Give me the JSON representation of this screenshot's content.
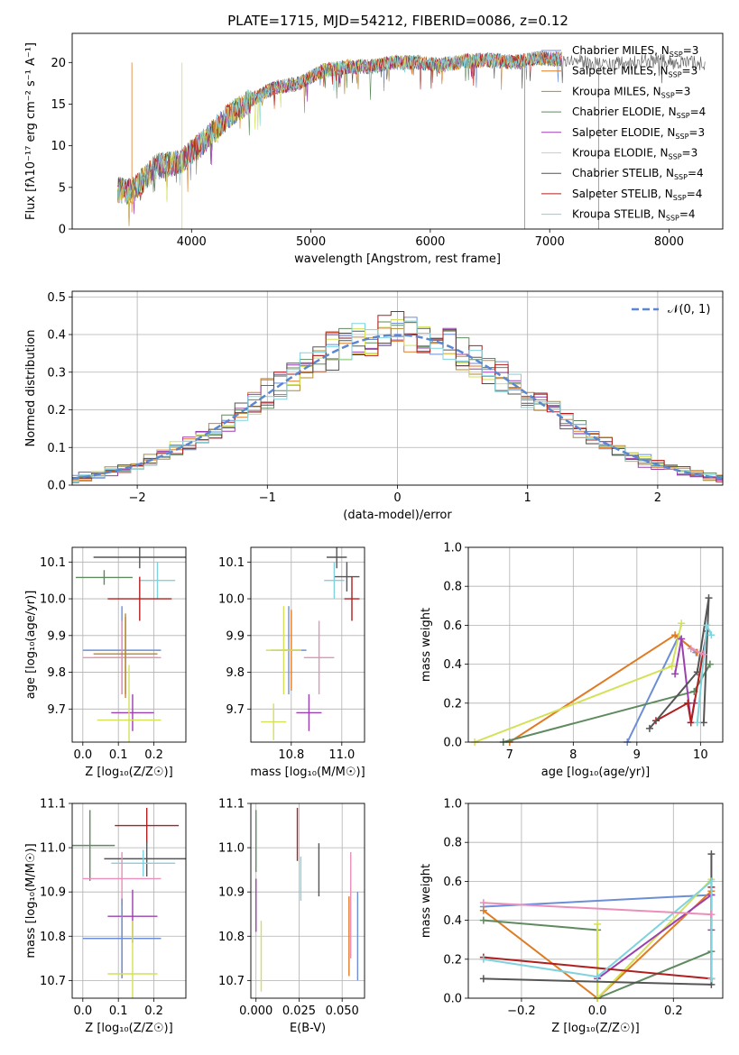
{
  "title": "PLATE=1715, MJD=54212, FIBERID=0086, z=0.12",
  "colors": {
    "Chabrier MILES": "#6b8ed6",
    "Salpeter MILES": "#e07b24",
    "Kroupa MILES": "#b5892e",
    "Chabrier ELODIE": "#5f8a5f",
    "Salpeter ELODIE": "#9c3fb0",
    "Kroupa ELODIE": "#d4e157",
    "Chabrier STELIB": "#555555",
    "Salpeter STELIB": "#b01e1e",
    "Kroupa STELIB": "#7fd3df",
    "Pink": "#e98fb9"
  },
  "chart_data": [
    {
      "id": "spectrum",
      "type": "line",
      "xlabel": "wavelength [Angstrom, rest frame]",
      "ylabel": "Flux [fλ10⁻¹⁷ erg cm⁻² s⁻¹ A⁻¹]",
      "xlim": [
        3000,
        8450
      ],
      "ylim": [
        0,
        23.5
      ],
      "xticks": [
        4000,
        5000,
        6000,
        7000,
        8000
      ],
      "yticks": [
        0,
        5,
        10,
        15,
        20
      ],
      "envelope_x": [
        3380,
        3500,
        3700,
        3900,
        4100,
        4300,
        4500,
        4700,
        4900,
        5100,
        5300,
        5500,
        5700,
        5900,
        6100,
        6300,
        6500,
        6700,
        6900,
        7100,
        7300,
        7500,
        7700,
        7900,
        8100,
        8300
      ],
      "envelope_y": [
        4.7,
        4.5,
        7.5,
        8.0,
        10.5,
        13.5,
        15.5,
        17.0,
        17.5,
        19.0,
        19.5,
        19.5,
        20.0,
        20.0,
        19.7,
        20.2,
        20.3,
        20.0,
        20.5,
        20.4,
        20.0,
        19.8,
        20.0,
        20.2,
        20.0,
        19.9
      ],
      "legend_location": "upper right",
      "legend": [
        {
          "label": "Chabrier MILES, N",
          "sub": "SSP",
          "suffix": "=3",
          "color": "#6b8ed6"
        },
        {
          "label": "Salpeter MILES, N",
          "sub": "SSP",
          "suffix": "=3",
          "color": "#e07b24"
        },
        {
          "label": "Kroupa MILES, N",
          "sub": "SSP",
          "suffix": "=3",
          "color": "#b5892e"
        },
        {
          "label": "Chabrier ELODIE, N",
          "sub": "SSP",
          "suffix": "=4",
          "color": "#5f8a5f"
        },
        {
          "label": "Salpeter ELODIE, N",
          "sub": "SSP",
          "suffix": "=3",
          "color": "#9c3fb0"
        },
        {
          "label": "Kroupa ELODIE, N",
          "sub": "SSP",
          "suffix": "=3",
          "color": "#d4e157"
        },
        {
          "label": "Chabrier STELIB, N",
          "sub": "SSP",
          "suffix": "=4",
          "color": "#555555"
        },
        {
          "label": "Salpeter STELIB, N",
          "sub": "SSP",
          "suffix": "=4",
          "color": "#b01e1e"
        },
        {
          "label": "Kroupa STELIB, N",
          "sub": "SSP",
          "suffix": "=4",
          "color": "#7fd3df"
        }
      ]
    },
    {
      "id": "residuals",
      "type": "bar",
      "xlabel": "(data-model)/error",
      "ylabel": "Normed distribution",
      "xlim": [
        -2.5,
        2.5
      ],
      "ylim": [
        0,
        0.515
      ],
      "xticks": [
        -2,
        -1,
        0,
        1,
        2
      ],
      "yticks": [
        0.0,
        0.1,
        0.2,
        0.3,
        0.4,
        0.5
      ],
      "grid": true,
      "legend": "𝒩(0, 1)",
      "legend_location": "upper right",
      "bin_width": 0.1,
      "bin_start": -2.55
    },
    {
      "id": "age-vs-Z",
      "type": "scatter",
      "xlabel": "Z [log₁₀(Z/Z☉)]",
      "ylabel": "age [log₁₀(age/yr)]",
      "xlim": [
        -0.03,
        0.29
      ],
      "ylim": [
        9.61,
        10.14
      ],
      "xticks": [
        0.0,
        0.1,
        0.2
      ],
      "yticks": [
        9.7,
        9.8,
        9.9,
        10.0,
        10.1
      ],
      "grid": true,
      "points": [
        {
          "x": 0.06,
          "y": 10.058,
          "xerr": 0.08,
          "yerr": 0.02,
          "color": "#5f8a5f"
        },
        {
          "x": 0.16,
          "y": 10.113,
          "xerr": 0.13,
          "yerr": 0.03,
          "color": "#555555"
        },
        {
          "x": 0.21,
          "y": 10.05,
          "xerr": 0.05,
          "yerr": 0.05,
          "color": "#7fd3df"
        },
        {
          "x": 0.16,
          "y": 10.0,
          "xerr": 0.09,
          "yerr": 0.06,
          "color": "#b01e1e"
        },
        {
          "x": 0.11,
          "y": 9.86,
          "xerr": 0.11,
          "yerr": 0.12,
          "color": "#6b8ed6"
        },
        {
          "x": 0.12,
          "y": 9.84,
          "xerr": 0.09,
          "yerr": 0.11,
          "color": "#e07b24"
        },
        {
          "x": 0.11,
          "y": 9.84,
          "xerr": 0.11,
          "yerr": 0.1,
          "color": "#e98fb9"
        },
        {
          "x": 0.12,
          "y": 9.85,
          "xerr": 0.09,
          "yerr": 0.11,
          "color": "#b5892e"
        },
        {
          "x": 0.14,
          "y": 9.69,
          "xerr": 0.06,
          "yerr": 0.05,
          "color": "#9c3fb0"
        },
        {
          "x": 0.13,
          "y": 9.67,
          "xerr": 0.09,
          "yerr": 0.15,
          "color": "#d4e157"
        }
      ]
    },
    {
      "id": "age-vs-mass",
      "type": "scatter",
      "xlabel": "mass [log₁₀(M/M☉)]",
      "ylabel": "",
      "xlim": [
        10.64,
        11.09
      ],
      "ylim": [
        9.61,
        10.14
      ],
      "xticks": [
        10.8,
        11.0
      ],
      "yticks": [
        9.7,
        9.8,
        9.9,
        10.0,
        10.1
      ],
      "grid": true,
      "points": [
        {
          "x": 11.02,
          "y": 10.06,
          "xerr": 0.05,
          "yerr": 0.04,
          "color": "#555555"
        },
        {
          "x": 10.98,
          "y": 10.113,
          "xerr": 0.04,
          "yerr": 0.03,
          "color": "#555555"
        },
        {
          "x": 10.97,
          "y": 10.05,
          "xerr": 0.04,
          "yerr": 0.05,
          "color": "#7fd3df"
        },
        {
          "x": 11.04,
          "y": 10.0,
          "xerr": 0.03,
          "yerr": 0.06,
          "color": "#b01e1e"
        },
        {
          "x": 10.79,
          "y": 9.86,
          "xerr": 0.07,
          "yerr": 0.12,
          "color": "#6b8ed6"
        },
        {
          "x": 10.8,
          "y": 9.86,
          "xerr": 0.04,
          "yerr": 0.11,
          "color": "#e07b24"
        },
        {
          "x": 10.91,
          "y": 9.84,
          "xerr": 0.06,
          "yerr": 0.1,
          "color": "#e98fb9"
        },
        {
          "x": 10.77,
          "y": 9.86,
          "xerr": 0.07,
          "yerr": 0.12,
          "color": "#d4e157"
        },
        {
          "x": 10.87,
          "y": 9.69,
          "xerr": 0.05,
          "yerr": 0.05,
          "color": "#9c3fb0"
        },
        {
          "x": 10.73,
          "y": 9.665,
          "xerr": 0.05,
          "yerr": 0.05,
          "color": "#d4e157"
        }
      ]
    },
    {
      "id": "mass-weight-vs-age",
      "type": "line",
      "xlabel": "age [log₁₀(age/yr)]",
      "ylabel": "mass weight",
      "xlim": [
        6.35,
        10.35
      ],
      "ylim": [
        0.0,
        1.0
      ],
      "xticks": [
        7,
        8,
        9,
        10
      ],
      "yticks": [
        0.0,
        0.2,
        0.4,
        0.6,
        0.8,
        1.0
      ],
      "grid": true,
      "series": [
        {
          "color": "#6b8ed6",
          "x": [
            8.85,
            9.65,
            9.93
          ],
          "y": [
            0.0,
            0.54,
            0.46
          ]
        },
        {
          "color": "#e07b24",
          "x": [
            7.0,
            9.6,
            9.95
          ],
          "y": [
            0.0,
            0.55,
            0.46
          ]
        },
        {
          "color": "#5f8a5f",
          "x": [
            6.9,
            9.9,
            10.15
          ],
          "y": [
            0.0,
            0.26,
            0.4
          ]
        },
        {
          "color": "#d4e157",
          "x": [
            6.45,
            9.55,
            9.7
          ],
          "y": [
            0.0,
            0.39,
            0.61
          ]
        },
        {
          "color": "#9c3fb0",
          "x": [
            9.6,
            9.7,
            9.85,
            9.9
          ],
          "y": [
            0.35,
            0.53,
            0.1,
            0.2
          ]
        },
        {
          "color": "#b01e1e",
          "x": [
            9.3,
            9.8,
            9.85,
            10.1
          ],
          "y": [
            0.11,
            0.2,
            0.1,
            0.57
          ]
        },
        {
          "color": "#555555",
          "x": [
            9.2,
            9.95,
            10.13,
            10.05
          ],
          "y": [
            0.07,
            0.36,
            0.74,
            0.1
          ]
        },
        {
          "color": "#7fd3df",
          "x": [
            9.95,
            10.1,
            10.17
          ],
          "y": [
            0.1,
            0.6,
            0.55
          ]
        },
        {
          "color": "#e98fb9",
          "x": [
            9.85,
            10.05
          ],
          "y": [
            0.48,
            0.45
          ]
        }
      ]
    },
    {
      "id": "mass-vs-Z",
      "type": "scatter",
      "xlabel": "Z [log₁₀(Z/Z☉)]",
      "ylabel": "mass [log₁₀(M/M☉)]",
      "xlim": [
        -0.03,
        0.29
      ],
      "ylim": [
        10.66,
        11.1
      ],
      "xticks": [
        0.0,
        0.1,
        0.2
      ],
      "yticks": [
        10.7,
        10.8,
        10.9,
        11.0,
        11.1
      ],
      "grid": true,
      "points": [
        {
          "x": 0.02,
          "y": 11.005,
          "xerr": 0.07,
          "yerr": 0.08,
          "color": "#5f8a5f"
        },
        {
          "x": 0.18,
          "y": 11.05,
          "xerr": 0.09,
          "yerr": 0.04,
          "color": "#b01e1e"
        },
        {
          "x": 0.18,
          "y": 10.975,
          "xerr": 0.12,
          "yerr": 0.04,
          "color": "#555555"
        },
        {
          "x": 0.17,
          "y": 10.965,
          "xerr": 0.09,
          "yerr": 0.03,
          "color": "#7fd3df"
        },
        {
          "x": 0.11,
          "y": 10.93,
          "xerr": 0.11,
          "yerr": 0.06,
          "color": "#e98fb9"
        },
        {
          "x": 0.14,
          "y": 10.845,
          "xerr": 0.07,
          "yerr": 0.06,
          "color": "#9c3fb0"
        },
        {
          "x": 0.11,
          "y": 10.795,
          "xerr": 0.11,
          "yerr": 0.09,
          "color": "#e07b24"
        },
        {
          "x": 0.11,
          "y": 10.795,
          "xerr": 0.11,
          "yerr": 0.09,
          "color": "#6b8ed6"
        },
        {
          "x": 0.14,
          "y": 10.715,
          "xerr": 0.07,
          "yerr": 0.12,
          "color": "#d4e157"
        }
      ]
    },
    {
      "id": "mass-vs-EBV",
      "type": "scatter",
      "xlabel": "E(B-V)",
      "ylabel": "",
      "xlim": [
        -0.003,
        0.063
      ],
      "ylim": [
        10.66,
        11.1
      ],
      "xticks": [
        0.0,
        0.025,
        0.05
      ],
      "yticks": [
        10.7,
        10.8,
        10.9,
        11.0,
        11.1
      ],
      "grid": true,
      "points": [
        {
          "x": 0.0,
          "y": 11.015,
          "xerr": 0.0,
          "yerr": 0.07,
          "color": "#5f8a5f"
        },
        {
          "x": 0.024,
          "y": 11.03,
          "xerr": 0.0,
          "yerr": 0.06,
          "color": "#b01e1e"
        },
        {
          "x": 0.0365,
          "y": 10.95,
          "xerr": 0.0,
          "yerr": 0.06,
          "color": "#555555"
        },
        {
          "x": 0.026,
          "y": 10.93,
          "xerr": 0.0,
          "yerr": 0.05,
          "color": "#7fd3df"
        },
        {
          "x": 0.055,
          "y": 10.87,
          "xerr": 0.0,
          "yerr": 0.12,
          "color": "#e98fb9"
        },
        {
          "x": 0.0,
          "y": 10.87,
          "xerr": 0.0,
          "yerr": 0.06,
          "color": "#9c3fb0"
        },
        {
          "x": 0.054,
          "y": 10.8,
          "xerr": 0.0,
          "yerr": 0.09,
          "color": "#e07b24"
        },
        {
          "x": 0.059,
          "y": 10.8,
          "xerr": 0.0,
          "yerr": 0.1,
          "color": "#6b8ed6"
        },
        {
          "x": 0.003,
          "y": 10.755,
          "xerr": 0.0,
          "yerr": 0.08,
          "color": "#d4e157"
        }
      ]
    },
    {
      "id": "mass-weight-vs-Z",
      "type": "line",
      "xlabel": "Z [log₁₀(Z/Z☉)]",
      "ylabel": "mass weight",
      "xlim": [
        -0.34,
        0.33
      ],
      "ylim": [
        0.0,
        1.0
      ],
      "xticks": [
        -0.2,
        0.0,
        0.2
      ],
      "yticks": [
        0.0,
        0.2,
        0.4,
        0.6,
        0.8,
        1.0
      ],
      "grid": true,
      "series": [
        {
          "color": "#6b8ed6",
          "x": [
            -0.3,
            0.3
          ],
          "y": [
            0.47,
            0.53
          ]
        },
        {
          "color": "#e07b24",
          "x": [
            -0.3,
            0.0,
            0.3
          ],
          "y": [
            0.45,
            0.0,
            0.55
          ]
        },
        {
          "color": "#5f8a5f",
          "x": [
            -0.3,
            0.0,
            0.0,
            0.3
          ],
          "y": [
            0.4,
            0.35,
            0.0,
            0.24
          ]
        },
        {
          "color": "#d4e157",
          "x": [
            0.0,
            0.0,
            0.3
          ],
          "y": [
            0.38,
            0.0,
            0.61
          ]
        },
        {
          "color": "#9c3fb0",
          "x": [
            0.0,
            0.3,
            0.3
          ],
          "y": [
            0.1,
            0.53,
            0.35
          ]
        },
        {
          "color": "#b01e1e",
          "x": [
            -0.3,
            0.3,
            0.3
          ],
          "y": [
            0.21,
            0.1,
            0.57
          ]
        },
        {
          "color": "#555555",
          "x": [
            -0.3,
            0.3,
            0.3
          ],
          "y": [
            0.1,
            0.07,
            0.74
          ]
        },
        {
          "color": "#7fd3df",
          "x": [
            -0.3,
            0.0,
            0.3,
            0.3
          ],
          "y": [
            0.2,
            0.11,
            0.6,
            0.1
          ]
        },
        {
          "color": "#e98fb9",
          "x": [
            -0.3,
            0.3
          ],
          "y": [
            0.49,
            0.43
          ]
        }
      ]
    }
  ]
}
